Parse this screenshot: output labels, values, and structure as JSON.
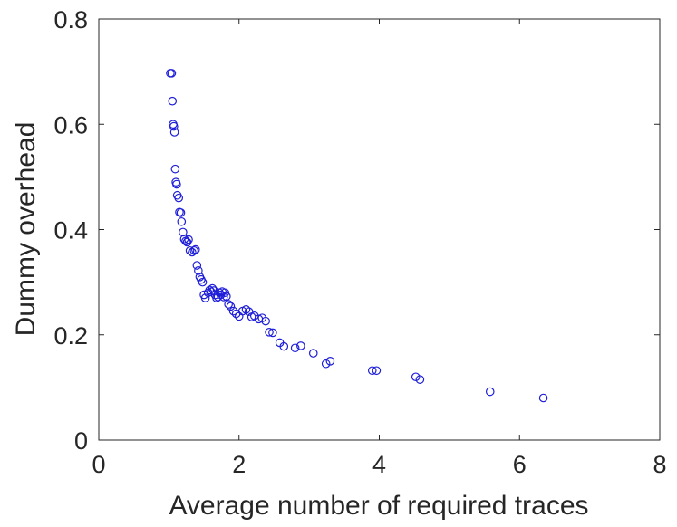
{
  "chart_data": {
    "type": "scatter",
    "title": "",
    "xlabel": "Average number of required traces",
    "ylabel": "Dummy overhead",
    "xlim": [
      0,
      8
    ],
    "ylim": [
      0,
      0.8
    ],
    "x_ticks": [
      0,
      2,
      4,
      6,
      8
    ],
    "y_ticks": [
      0,
      0.2,
      0.4,
      0.6,
      0.8
    ],
    "x_tick_labels": [
      "0",
      "2",
      "4",
      "6",
      "8"
    ],
    "y_tick_labels": [
      "0",
      "0.2",
      "0.4",
      "0.6",
      "0.8"
    ],
    "grid": false,
    "marker": "circle-open",
    "color": "#1f1fd9",
    "series": [
      {
        "x": [
          1.02,
          1.04,
          1.05,
          1.06,
          1.07,
          1.08,
          1.09,
          1.1,
          1.11,
          1.12,
          1.14,
          1.15,
          1.17,
          1.18,
          1.2,
          1.22,
          1.24,
          1.26,
          1.28,
          1.3,
          1.33,
          1.36,
          1.38,
          1.4,
          1.42,
          1.44,
          1.46,
          1.48,
          1.5,
          1.52,
          1.56,
          1.58,
          1.6,
          1.62,
          1.64,
          1.66,
          1.68,
          1.7,
          1.72,
          1.74,
          1.76,
          1.78,
          1.8,
          1.82,
          1.85,
          1.88,
          1.92,
          1.96,
          2.0,
          2.05,
          2.1,
          2.14,
          2.18,
          2.22,
          2.28,
          2.33,
          2.38,
          2.43,
          2.48,
          2.58,
          2.64,
          2.8,
          2.88,
          3.06,
          3.24,
          3.3,
          3.9,
          3.96,
          4.52,
          4.58,
          5.58,
          6.34
        ],
        "y": [
          0.697,
          0.697,
          0.644,
          0.6,
          0.596,
          0.585,
          0.515,
          0.49,
          0.486,
          0.465,
          0.46,
          0.433,
          0.432,
          0.415,
          0.395,
          0.382,
          0.378,
          0.376,
          0.381,
          0.36,
          0.357,
          0.36,
          0.362,
          0.332,
          0.322,
          0.31,
          0.305,
          0.3,
          0.276,
          0.27,
          0.28,
          0.285,
          0.282,
          0.288,
          0.284,
          0.276,
          0.27,
          0.272,
          0.28,
          0.276,
          0.282,
          0.272,
          0.28,
          0.273,
          0.258,
          0.254,
          0.245,
          0.24,
          0.235,
          0.245,
          0.248,
          0.244,
          0.234,
          0.236,
          0.23,
          0.232,
          0.226,
          0.205,
          0.204,
          0.185,
          0.178,
          0.175,
          0.179,
          0.165,
          0.145,
          0.15,
          0.132,
          0.132,
          0.12,
          0.115,
          0.092,
          0.08
        ]
      }
    ]
  }
}
